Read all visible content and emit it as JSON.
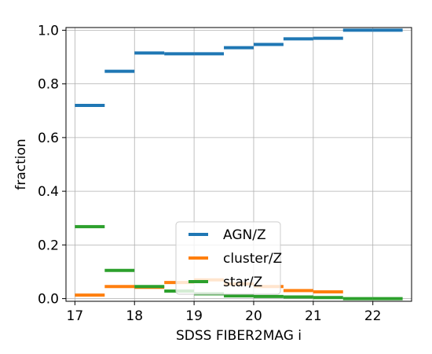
{
  "chart_data": {
    "type": "step",
    "xlabel": "SDSS FIBER2MAG i",
    "ylabel": "fraction",
    "xlim": [
      16.85,
      22.65
    ],
    "ylim": [
      -0.01,
      1.01
    ],
    "xticks": [
      "17",
      "18",
      "19",
      "20",
      "21",
      "22"
    ],
    "yticks": [
      "0.0",
      "0.2",
      "0.4",
      "0.6",
      "0.8",
      "1.0"
    ],
    "grid": true,
    "legend_position": "lower center",
    "bins": [
      [
        17.0,
        17.5
      ],
      [
        17.5,
        18.0
      ],
      [
        18.0,
        18.5
      ],
      [
        18.5,
        19.0
      ],
      [
        19.0,
        19.5
      ],
      [
        19.5,
        20.0
      ],
      [
        20.0,
        20.5
      ],
      [
        20.5,
        21.0
      ],
      [
        21.0,
        21.5
      ],
      [
        21.5,
        22.0
      ],
      [
        22.0,
        22.5
      ]
    ],
    "series": [
      {
        "name": "AGN/Z",
        "color": "#1f77b4",
        "values": [
          0.72,
          0.847,
          0.915,
          0.912,
          0.912,
          0.935,
          0.947,
          0.968,
          0.97,
          1.0,
          1.0
        ]
      },
      {
        "name": "cluster/Z",
        "color": "#ff7f0e",
        "values": [
          0.013,
          0.045,
          0.042,
          0.06,
          0.07,
          0.055,
          0.045,
          0.03,
          0.025,
          null,
          null
        ]
      },
      {
        "name": "star/Z",
        "color": "#2ca02c",
        "values": [
          0.268,
          0.105,
          0.045,
          0.028,
          0.018,
          0.01,
          0.008,
          0.006,
          0.004,
          0.0,
          0.0
        ]
      }
    ]
  }
}
